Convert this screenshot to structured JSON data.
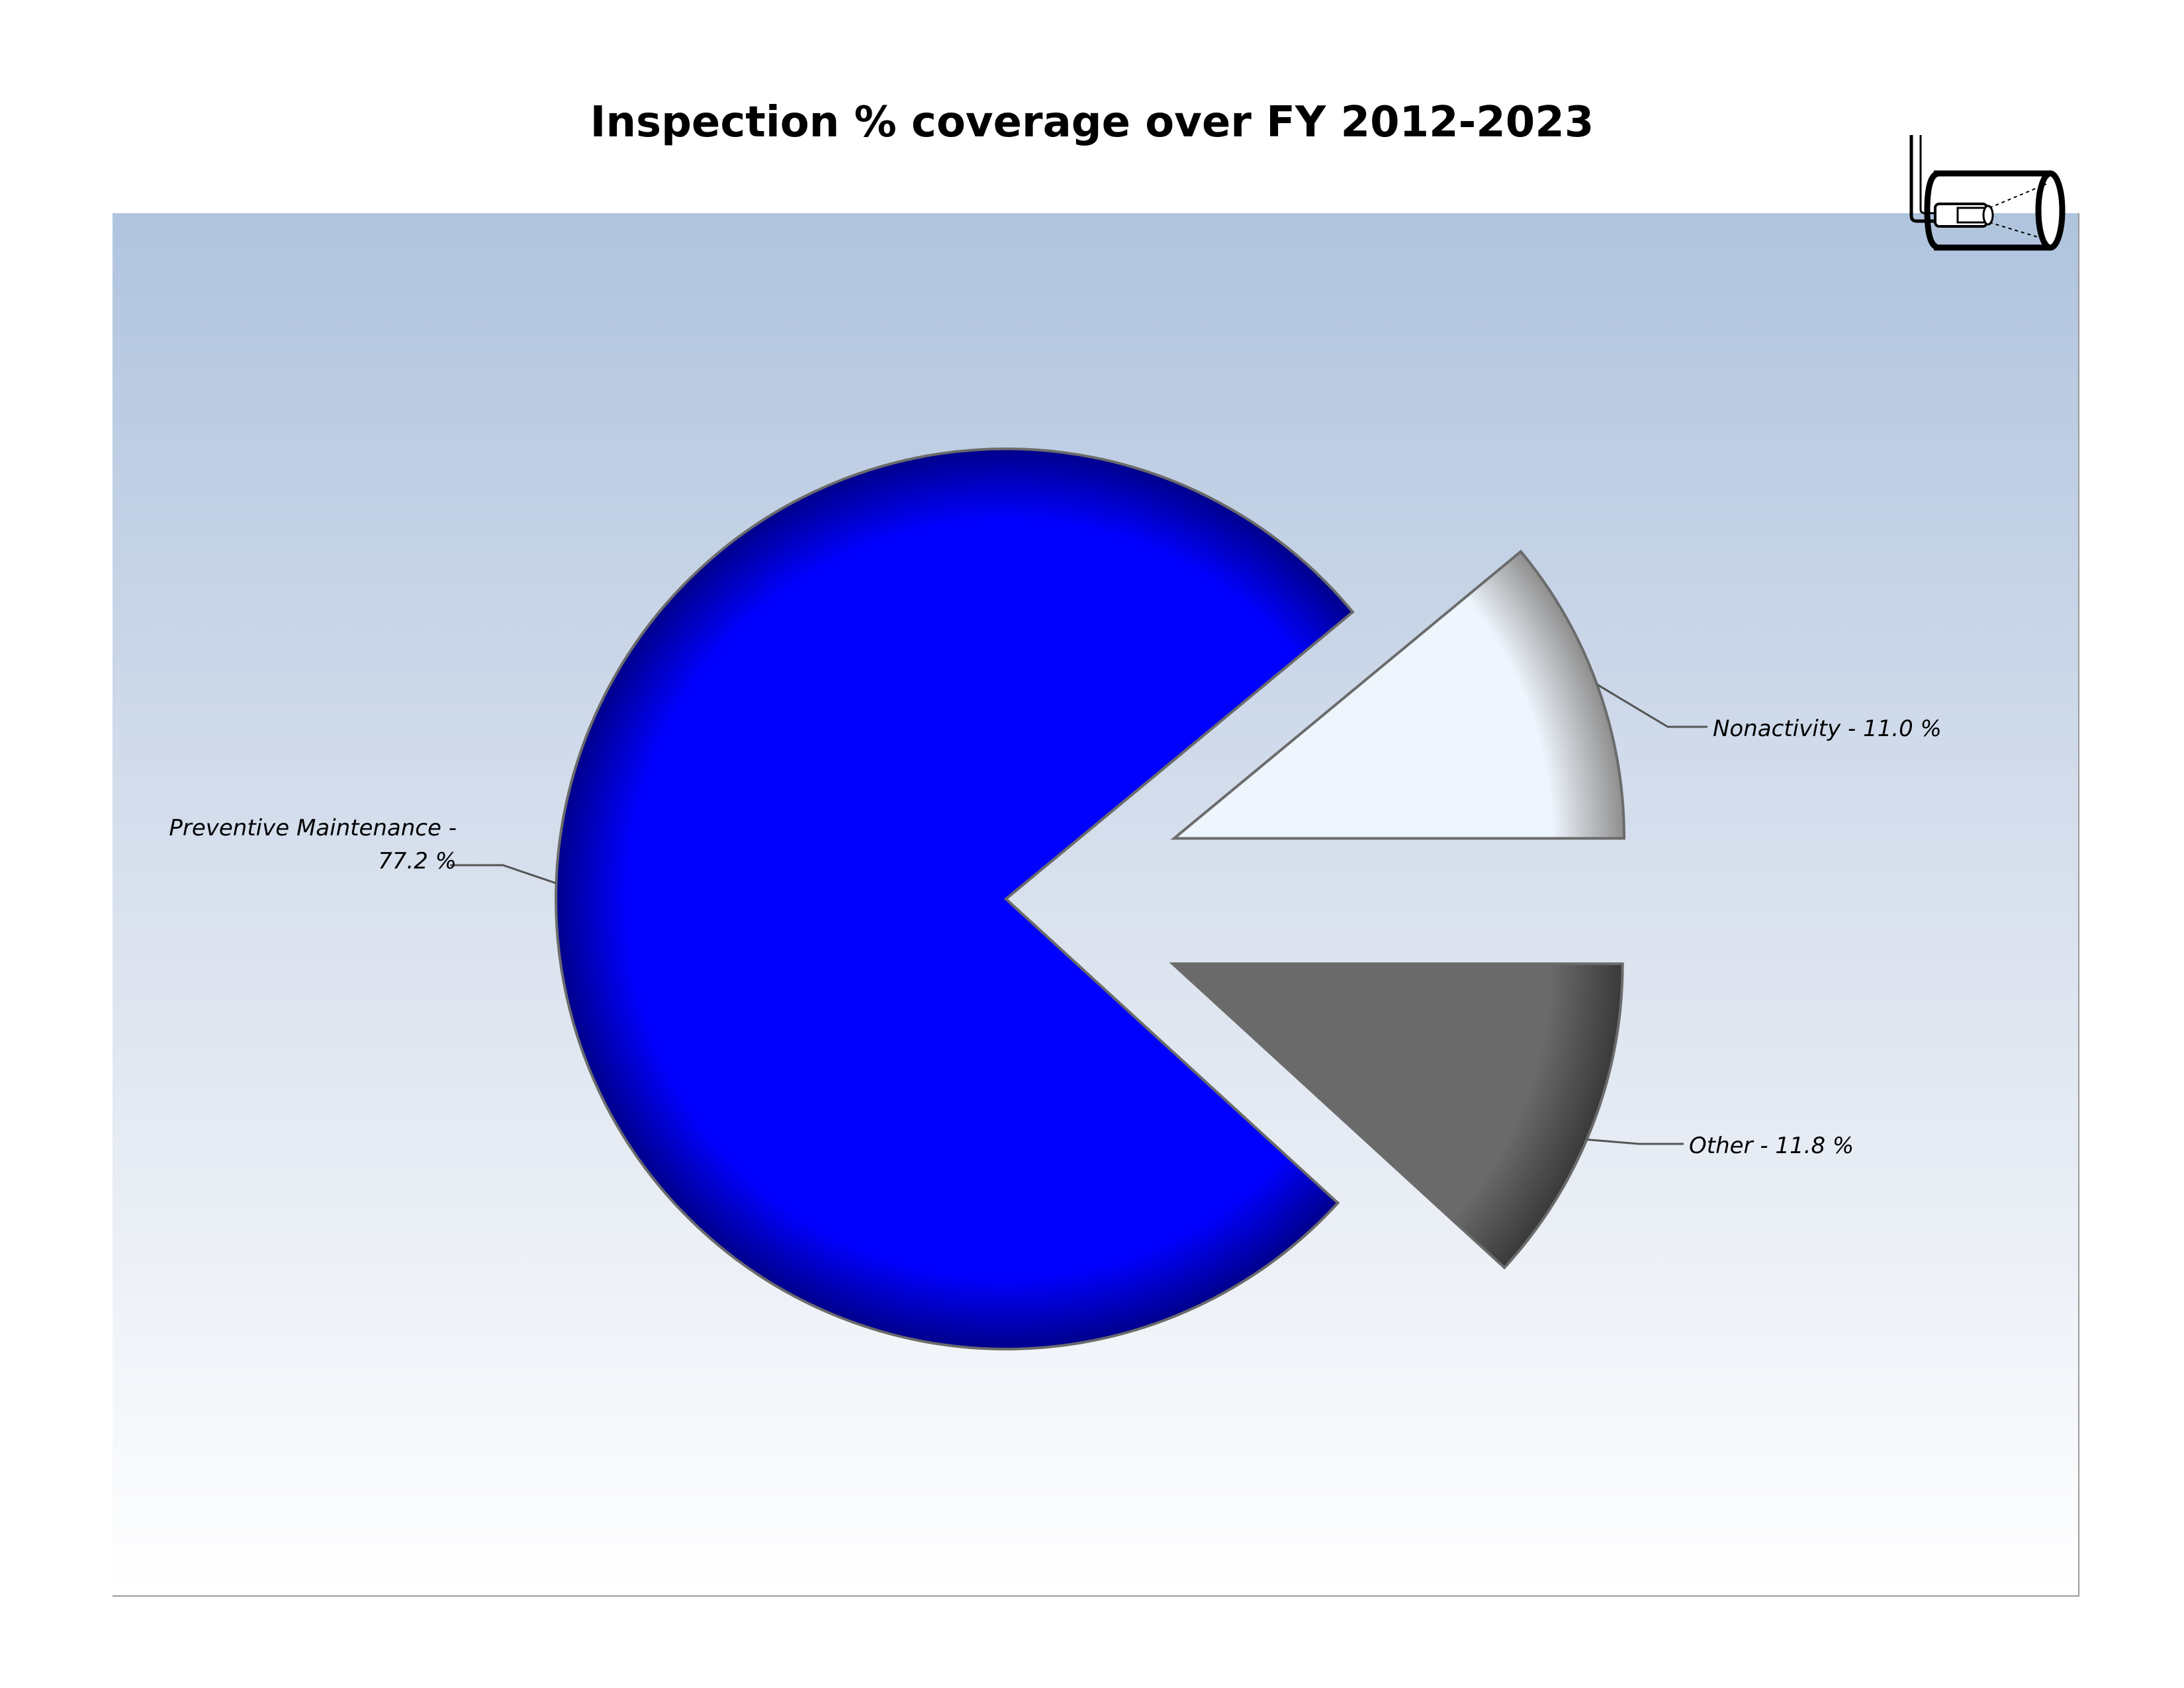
{
  "chart_data": {
    "type": "pie",
    "title": "Inspection % coverage over FY 2012-2023",
    "exploded": true,
    "slices": [
      {
        "label": "Preventive Maintenance - 77.2 %",
        "label_lines": [
          "Preventive Maintenance -",
          "77.2 %"
        ],
        "category": "Preventive Maintenance",
        "value": 77.2,
        "color": "#0000ff",
        "dark": "#00008c",
        "explode": false
      },
      {
        "label": "Nonactivity - 11.0 %",
        "label_lines": [
          "Nonactivity - 11.0 %"
        ],
        "category": "Nonactivity",
        "value": 11.0,
        "color": "#eef5fd",
        "dark": "#8e8e8e",
        "explode": true
      },
      {
        "label": "Other - 11.8 %",
        "label_lines": [
          "Other - 11.8 %"
        ],
        "category": "Other",
        "value": 11.8,
        "color": "#6a6a6a",
        "dark": "#3a3a3a",
        "explode": true
      }
    ],
    "legend": "none",
    "background": [
      "#b0c4de",
      "#ffffff"
    ]
  },
  "logo": {
    "icon": "inspection-camera-icon"
  }
}
